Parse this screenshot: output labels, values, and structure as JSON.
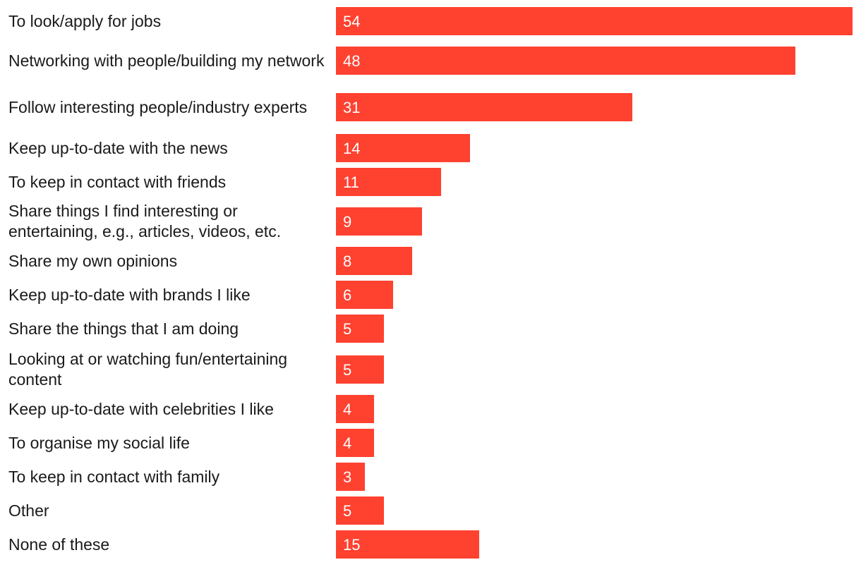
{
  "chart_data": {
    "type": "bar",
    "orientation": "horizontal",
    "categories": [
      "To look/apply for jobs",
      "Networking with people/building my network",
      "Follow interesting people/industry experts",
      "Keep up-to-date with the news",
      "To keep in contact with friends",
      "Share things I find interesting or entertaining, e.g., articles, videos, etc.",
      "Share my own opinions",
      "Keep up-to-date with brands I like",
      "Share the things that I am doing",
      "Looking at or watching fun/entertaining content",
      "Keep up-to-date with celebrities I like",
      "To organise my social life",
      "To keep in contact with family",
      "Other",
      "None of these"
    ],
    "values": [
      54,
      48,
      31,
      14,
      11,
      9,
      8,
      6,
      5,
      5,
      4,
      4,
      3,
      5,
      15
    ],
    "xlim": [
      0,
      54
    ],
    "bar_color": "#ff4130",
    "value_label_color": "#ffffff",
    "grid": false,
    "legend": "none"
  }
}
